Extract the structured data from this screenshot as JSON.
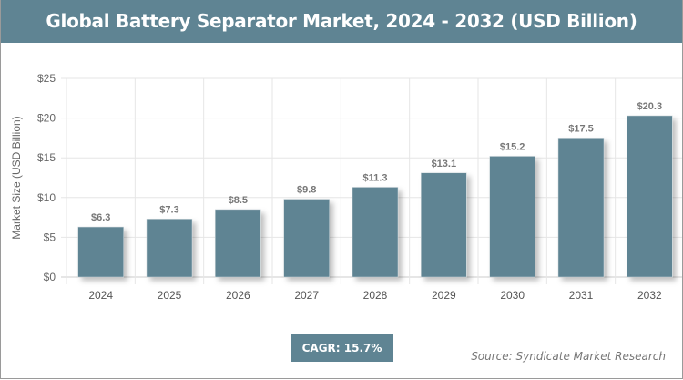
{
  "title": "Global Battery Separator Market, 2024 - 2032 (USD Billion)",
  "cagr_label": "CAGR: 15.7%",
  "source": "Source: Syndicate Market Research",
  "colors": {
    "bar": "#5f8493",
    "header": "#5f8493",
    "grid": "#e3e3e3",
    "text": "#666666"
  },
  "chart_data": {
    "type": "bar",
    "title": "Global Battery Separator Market, 2024 - 2032 (USD Billion)",
    "xlabel": "",
    "ylabel": "Market Size (USD Billion)",
    "categories": [
      "2024",
      "2025",
      "2026",
      "2027",
      "2028",
      "2029",
      "2030",
      "2031",
      "2032"
    ],
    "values": [
      6.3,
      7.3,
      8.5,
      9.8,
      11.3,
      13.1,
      15.2,
      17.5,
      20.3
    ],
    "data_labels": [
      "$6.3",
      "$7.3",
      "$8.5",
      "$9.8",
      "$11.3",
      "$13.1",
      "$15.2",
      "$17.5",
      "$20.3"
    ],
    "ylim": [
      0,
      25
    ],
    "yticks": [
      0,
      5,
      10,
      15,
      20,
      25
    ],
    "ytick_labels": [
      "$0",
      "$5",
      "$10",
      "$15",
      "$20",
      "$25"
    ],
    "grid": true,
    "legend": "none"
  }
}
